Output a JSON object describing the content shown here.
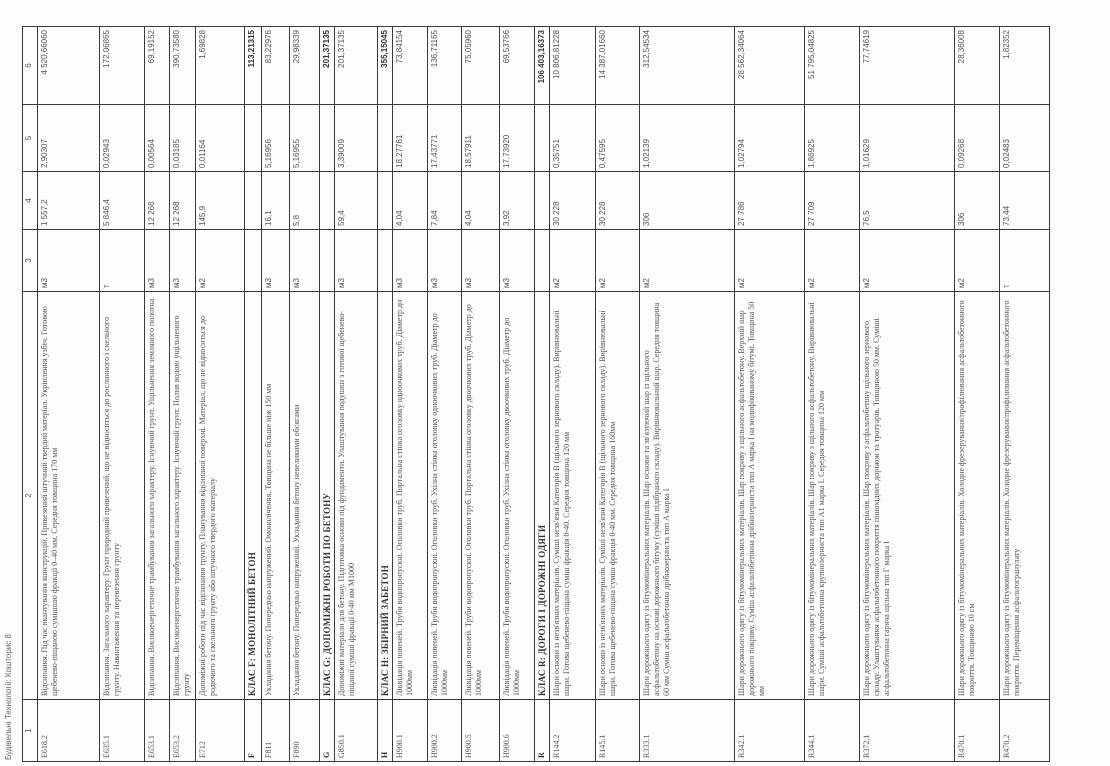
{
  "document": {
    "title": "Будівельні Технології: Кошторис 8",
    "column_numbers": [
      "1",
      "2",
      "3",
      "4",
      "5",
      "6"
    ],
    "rows": [
      {
        "type": "item",
        "code": "E618.2",
        "description": "Відсипання. Під час вкантування конструкцій. Привезений штучний твердий матеріал. Укріплення узбіч. Готовою щебенево-піщаною сумішшю фракції 0–40 мм. Середня товщина 170 мм",
        "unit": "м3",
        "quantity": "1 557,2",
        "price": "2,90307",
        "total": "4 520,66060"
      },
      {
        "type": "item",
        "code": "E635.1",
        "description": "Відсипання. Загального характеру. Грунт природний привезений, що не відноситься до рослинного і скельного грунту. Навантаження та перевезення грунту",
        "unit": "т",
        "quantity": "5 846,4",
        "price": "0,02943",
        "total": "172,06865"
      },
      {
        "type": "item",
        "code": "E653.1",
        "description": "Відсипання. Високоенергетичне трамбування загального характеру. Існуючий грунт. Ущільнення земляного полотна",
        "unit": "м3",
        "quantity": "12 268",
        "price": "0,00564",
        "total": "69,19152"
      },
      {
        "type": "item",
        "code": "E653.2",
        "description": "Відсипання. Високоенергетичне трамбування загального характеру. Існуючий грунт. Полив водою ущільненого грунту",
        "unit": "м3",
        "quantity": "12 268",
        "price": "0,03185",
        "total": "390,73580"
      },
      {
        "type": "item",
        "code": "E712",
        "description": "Допоміжні роботи під час відсипання грунту. Планування відсипаної поверхні. Матеріал, що не відноситься до родючого та скельного грунту або штучного твердого матеріалу",
        "unit": "м2",
        "quantity": "145,9",
        "price": "0,01164",
        "total": "1,69828"
      },
      {
        "type": "section",
        "code": "F",
        "description": "КЛАС F: МОНОЛІТНИЙ БЕТОН",
        "unit": "",
        "quantity": "",
        "price": "",
        "total": "113,21315"
      },
      {
        "type": "item",
        "code": "F811",
        "description": "Укладання бетону. Попередньо напружений. Омонолічення. Товщина не більше ніж 150 мм",
        "unit": "м3",
        "quantity": "16,1",
        "price": "5,16956",
        "total": "83,22976"
      },
      {
        "type": "item",
        "code": "F890",
        "description": "Укладання бетону. Попередньо напружений. Укладання бетону невеликими обсягами",
        "unit": "м3",
        "quantity": "5,8",
        "price": "5,16955",
        "total": "29,98339"
      },
      {
        "type": "section",
        "code": "G",
        "description": "КЛАС G: ДОПОМІЖНІ РОБОТИ ПО БЕТОНУ",
        "unit": "",
        "quantity": "",
        "price": "",
        "total": "201,37135"
      },
      {
        "type": "item",
        "code": "G850.1",
        "description": "Допоміжні матеріали для бетону. Підготовка основи під фундаменти. Улаштування подушки з готової щебенево-піщаної суміші фракції 0-40 мм М1000",
        "unit": "м3",
        "quantity": "59,4",
        "price": "3,39009",
        "total": "201,37135"
      },
      {
        "type": "section",
        "code": "H",
        "description": "КЛАС H: ЗБІРНИЙ ЗАБЕТОН",
        "unit": "",
        "quantity": "",
        "price": "",
        "total": "355,15045"
      },
      {
        "type": "item",
        "code": "H900.1",
        "description": "Ліквідація повеней. Труби водопропускні. Оголовки труб. Портальна стінка оголовку одноочкових труб. Діаметр до 1000мм",
        "unit": "м3",
        "quantity": "4,04",
        "price": "18,27761",
        "total": "73,84154"
      },
      {
        "type": "item",
        "code": "H900.2",
        "description": "Ліквідація повеней. Труби водопропускні. Оголовки труб. Ухілна стінка оголовку одноочкових труб. Діаметр до 1000мм",
        "unit": "м3",
        "quantity": "7,84",
        "price": "17,43771",
        "total": "136,71165"
      },
      {
        "type": "item",
        "code": "H900.5",
        "description": "Ліквідація повеней. Труби водопропускні. Оголовки труб. Портальна стінка оголовку двоочкових труб. Діаметр до 1000мм",
        "unit": "м3",
        "quantity": "4,04",
        "price": "18,57911",
        "total": "75,05960"
      },
      {
        "type": "item",
        "code": "H900.6",
        "description": "Ліквідація повеней. Труби водопропускні. Оголовки труб. Ухілна стінка оголовку двоочкових труб. Діаметр до 1000мм",
        "unit": "м3",
        "quantity": "3,92",
        "price": "17,73920",
        "total": "69,53766"
      },
      {
        "type": "section",
        "code": "R",
        "description": "КЛАС R: ДОРОГИ І ДОРОЖНІ ОДЯГИ",
        "unit": "",
        "quantity": "",
        "price": "",
        "total": "106 403,16373"
      },
      {
        "type": "item",
        "code": "R144.2",
        "description": "Шари основи із незв'язних матеріалів. Суміші незв'язні Категорія B (щільного зернового складу). Вирівнювальні шари. Готова щебенево-піщана суміш фракція 0-40. Середня товщина 120 мм",
        "unit": "м2",
        "quantity": "30 228",
        "price": "0,35751",
        "total": "10 806,81228"
      },
      {
        "type": "item",
        "code": "R145.1",
        "description": "Шари основи із незв'язних матеріалів. Суміші незв'язні Категорія B (щільного зернового складу). Вирівнювальні шари. Готова щебенево-піщана суміш фракція 0-40 мм. Середня товщина 160мм",
        "unit": "м2",
        "quantity": "30 228",
        "price": "0,47595",
        "total": "14 387,01660"
      },
      {
        "type": "item",
        "code": "R333.1",
        "description": "Шари дорожнього одягу із бітумомінеральних матеріалів. Шар основи та зв'язуючий шар із щільного асфальтобетону на основі дорожнього бітуму (суміші підібраного складу). Вирівнювальний шар. Середня товщина 60 мм Суміш асфальтобетонна дрібнозерниста тип А марка I",
        "unit": "м2",
        "quantity": "306",
        "price": "1,02139",
        "total": "312,54534"
      },
      {
        "type": "item",
        "code": "R342.1",
        "description": "Шари дорожнього одягу із бітумомінеральних матеріалів. Шар покриву з щільного асфальтобетону. Верхній шар дорожнього покриву. Суміш асфальтобетонна дрібнозерниста тип А марка I на модифікованому бітумі. Товщина 50 мм",
        "unit": "м2",
        "quantity": "27 786",
        "price": "1,02794",
        "total": "28 562,34064"
      },
      {
        "type": "item",
        "code": "R344.1",
        "description": "Шари дорожнього одягу із бітумомінеральних матеріалів. Шар покриву з щільного асфальтобетону. Вирівнювальні шари. Суміші асфальтобетонна крупнозерниста тип А1 марка I. Середня товщина 120 мм",
        "unit": "м2",
        "quantity": "27 709",
        "price": "1,86925",
        "total": "51 795,04825"
      },
      {
        "type": "item",
        "code": "R372.1",
        "description": "Шари дорожнього одягу із бітумомінеральних матеріалів. Шар покриву з асфальтобетону щільного зернового складу. Улаштування асфальтобетонного покриття пішохідних доріжок та тротуарів. Товщиною 50 мм. Суміші асфальтобетонна гаряча щільна тип Г марка I",
        "unit": "м2",
        "quantity": "76,5",
        "price": "1,01629",
        "total": "77,74619"
      },
      {
        "type": "item",
        "code": "R470.1",
        "description": "Шари дорожнього одягу із бітумомінеральних матеріалів. Холодне фрезерування/профілювання асфальтобетонного покриття. Товщиною 10 см",
        "unit": "м2",
        "quantity": "306",
        "price": "0,09268",
        "total": "28,36008"
      },
      {
        "type": "item",
        "code": "R470.2",
        "description": "Шари дорожнього одягу із бітумомінеральних матеріалів. Холодне фрезерування/профілювання асфальтобетонного покриття. Переміщення асфальтогранулату",
        "unit": "т",
        "quantity": "73,44",
        "price": "0,02483",
        "total": "1,82352"
      }
    ]
  }
}
